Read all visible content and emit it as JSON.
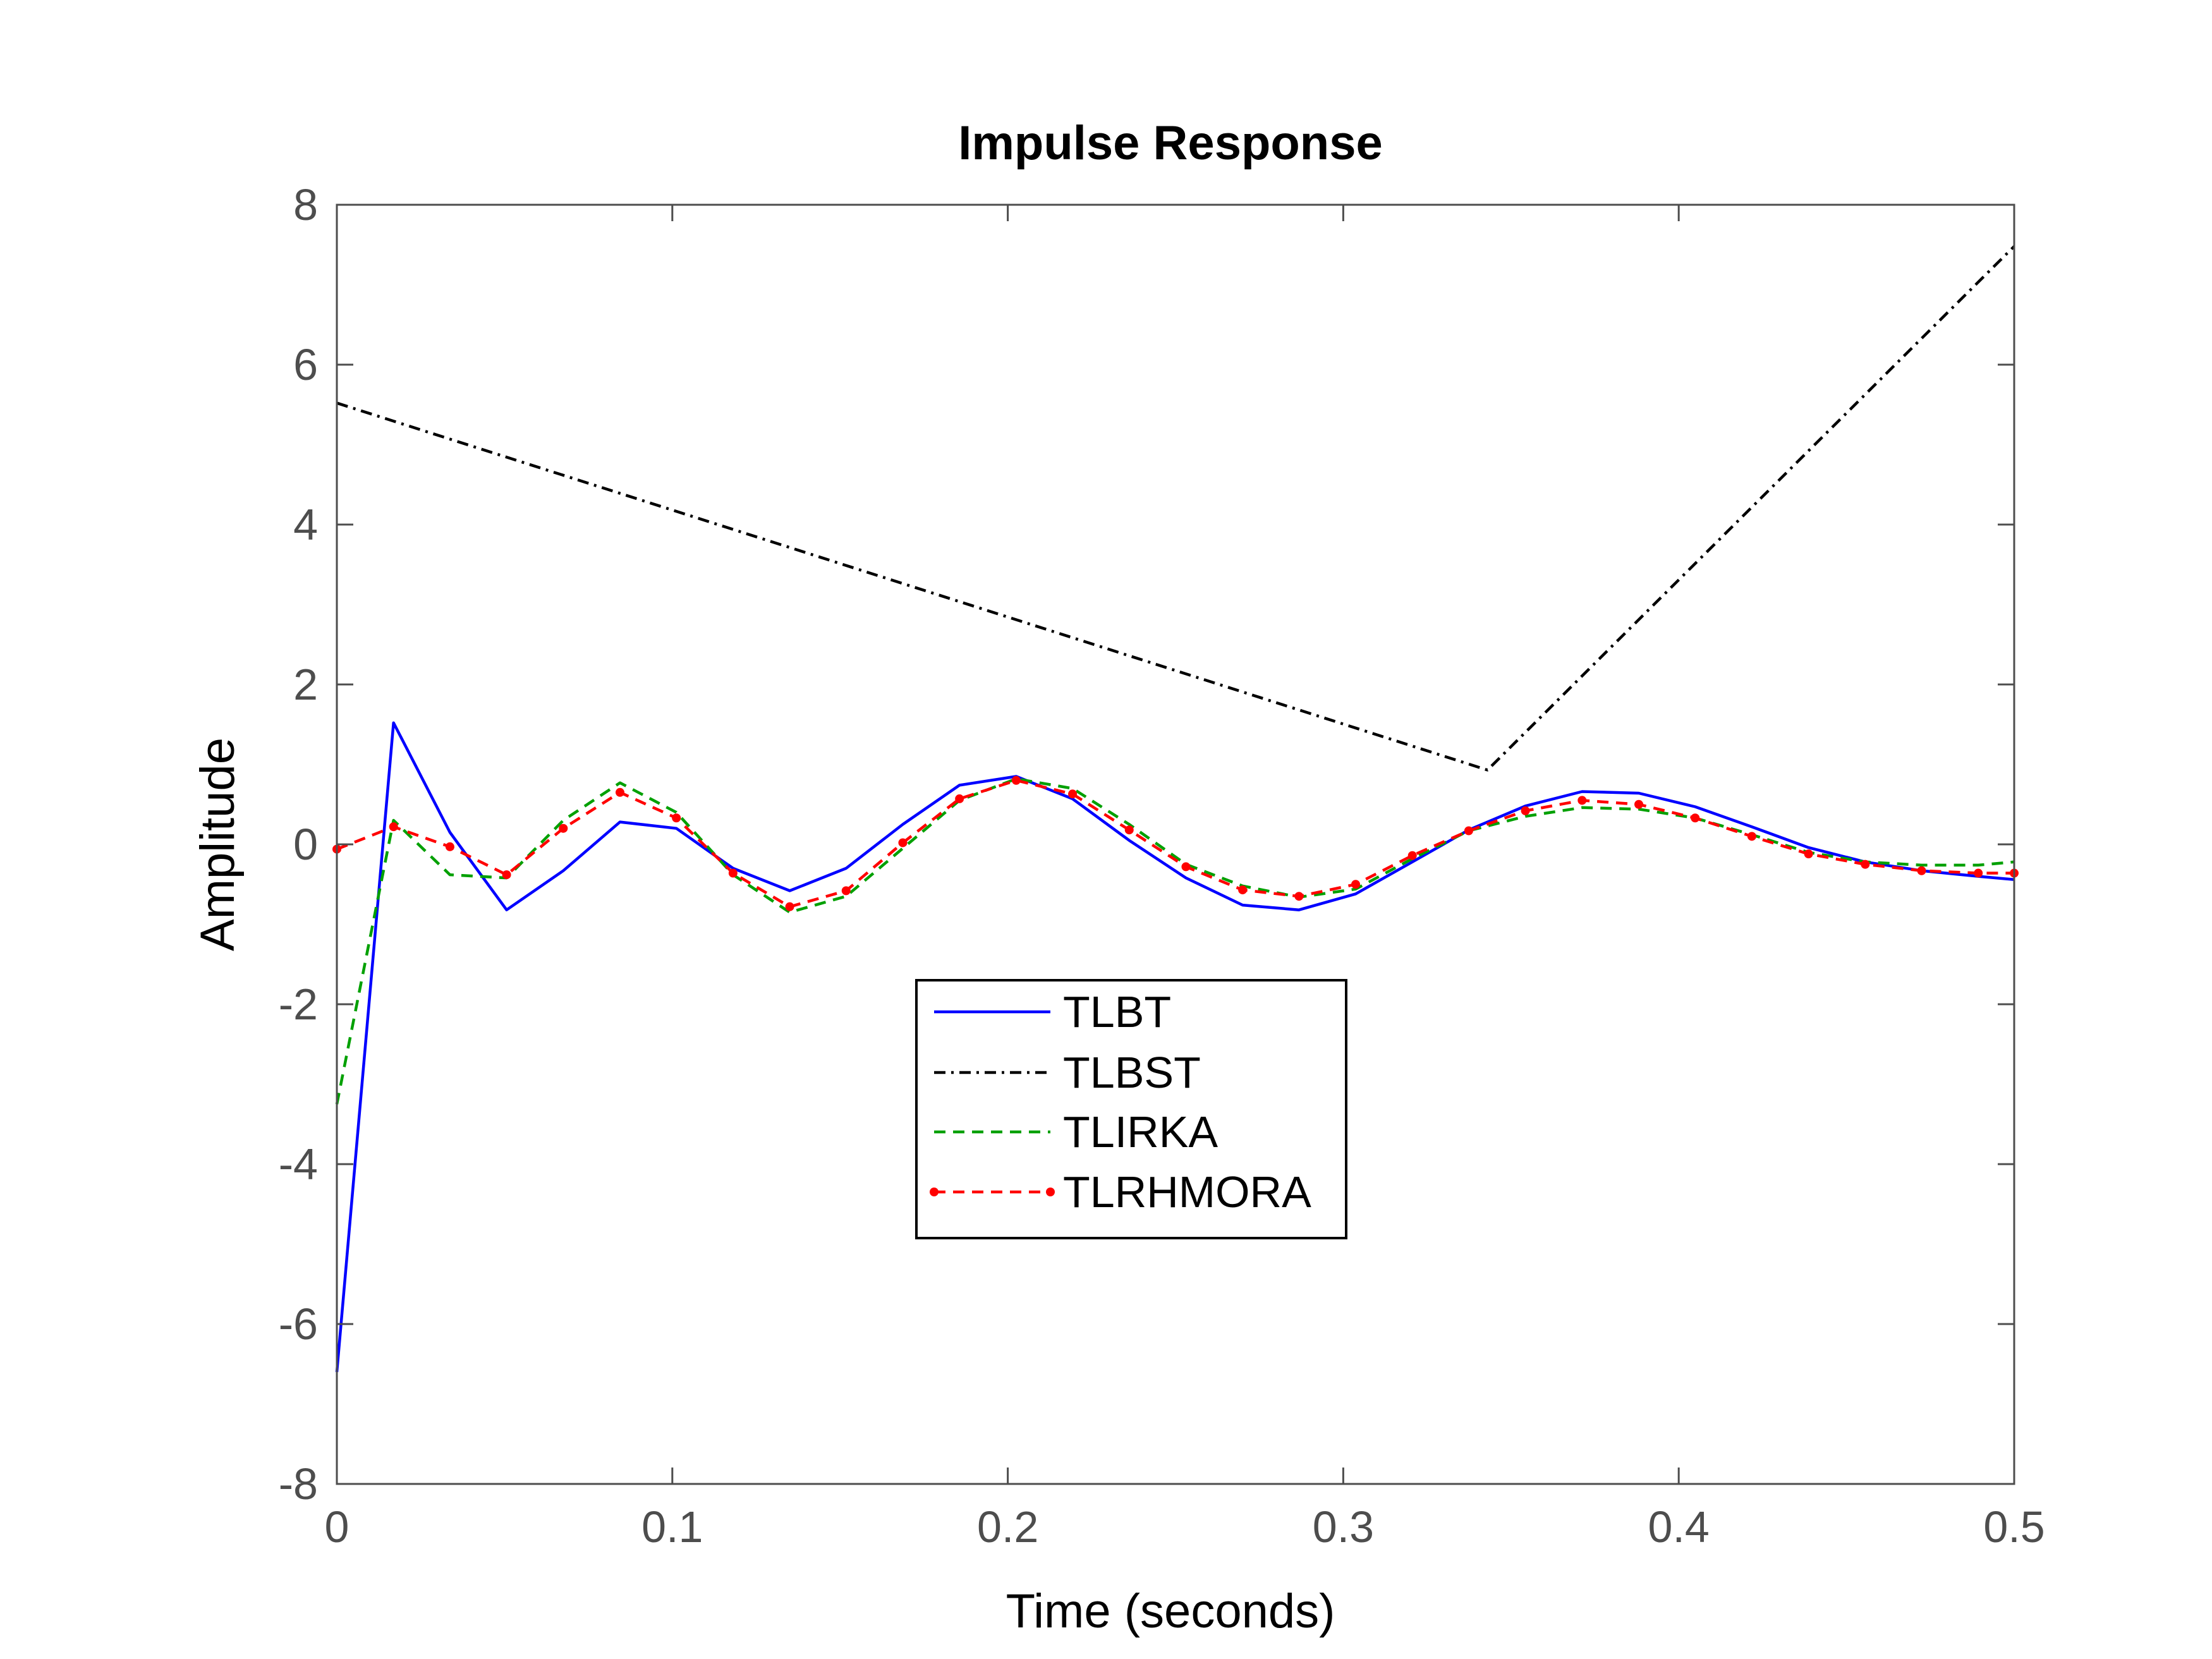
{
  "chart_data": {
    "type": "line",
    "title": "Impulse Response",
    "xlabel": "Time (seconds)",
    "ylabel": "Amplitude",
    "xlim": [
      0,
      0.5
    ],
    "ylim": [
      -8,
      8
    ],
    "grid": false,
    "legend_position": "center",
    "xticks": [
      0,
      0.1,
      0.2,
      0.3,
      0.4,
      0.5
    ],
    "xtick_labels": [
      "0",
      "0.1",
      "0.2",
      "0.3",
      "0.4",
      "0.5"
    ],
    "yticks": [
      -8,
      -6,
      -4,
      -2,
      0,
      2,
      4,
      6,
      8
    ],
    "ytick_labels": [
      "-8",
      "-6",
      "-4",
      "-2",
      "0",
      "2",
      "4",
      "6",
      "8"
    ],
    "series": [
      {
        "name": "TLBT",
        "color": "#0000ff",
        "style": "solid",
        "x": [
          0,
          0.0169,
          0.0337,
          0.0506,
          0.0675,
          0.0844,
          0.1012,
          0.1181,
          0.135,
          0.1518,
          0.1687,
          0.1856,
          0.2025,
          0.2193,
          0.2362,
          0.2531,
          0.27,
          0.2868,
          0.3037,
          0.3206,
          0.3374,
          0.3543,
          0.3712,
          0.3881,
          0.4049,
          0.4218,
          0.4387,
          0.4556,
          0.4724,
          0.4893,
          0.5
        ],
        "values": [
          -6.6,
          1.52,
          0.15,
          -0.82,
          -0.33,
          0.28,
          0.2,
          -0.3,
          -0.58,
          -0.3,
          0.25,
          0.74,
          0.85,
          0.57,
          0.05,
          -0.42,
          -0.76,
          -0.82,
          -0.62,
          -0.22,
          0.18,
          0.48,
          0.66,
          0.64,
          0.47,
          0.22,
          -0.04,
          -0.22,
          -0.33,
          -0.4,
          -0.44
        ]
      },
      {
        "name": "TLBST",
        "color": "#000000",
        "style": "dashdot",
        "x": [
          0,
          0.343,
          0.5
        ],
        "values": [
          5.52,
          0.93,
          7.48
        ]
      },
      {
        "name": "TLIRKA",
        "color": "#00a000",
        "style": "dashed",
        "x": [
          0,
          0.0169,
          0.0337,
          0.0506,
          0.0675,
          0.0844,
          0.1012,
          0.1181,
          0.135,
          0.1518,
          0.1687,
          0.1856,
          0.2025,
          0.2193,
          0.2362,
          0.2531,
          0.27,
          0.2868,
          0.3037,
          0.3206,
          0.3374,
          0.3543,
          0.3712,
          0.3881,
          0.4049,
          0.4218,
          0.4387,
          0.4556,
          0.4724,
          0.4893,
          0.5
        ],
        "values": [
          -3.25,
          0.3,
          -0.38,
          -0.42,
          0.3,
          0.77,
          0.4,
          -0.38,
          -0.85,
          -0.65,
          -0.05,
          0.55,
          0.82,
          0.7,
          0.25,
          -0.25,
          -0.52,
          -0.66,
          -0.56,
          -0.18,
          0.17,
          0.35,
          0.46,
          0.44,
          0.33,
          0.12,
          -0.1,
          -0.22,
          -0.26,
          -0.26,
          -0.22
        ]
      },
      {
        "name": "TLRHMORA",
        "color": "#ff0000",
        "style": "dashed-dot-markers",
        "x": [
          0,
          0.0169,
          0.0337,
          0.0506,
          0.0675,
          0.0844,
          0.1012,
          0.1181,
          0.135,
          0.1518,
          0.1687,
          0.1856,
          0.2025,
          0.2193,
          0.2362,
          0.2531,
          0.27,
          0.2868,
          0.3037,
          0.3206,
          0.3374,
          0.3543,
          0.3712,
          0.3881,
          0.4049,
          0.4218,
          0.4387,
          0.4556,
          0.4724,
          0.4893,
          0.5
        ],
        "values": [
          -0.06,
          0.22,
          -0.03,
          -0.38,
          0.2,
          0.65,
          0.33,
          -0.36,
          -0.78,
          -0.58,
          0.02,
          0.57,
          0.8,
          0.63,
          0.18,
          -0.28,
          -0.57,
          -0.65,
          -0.5,
          -0.14,
          0.17,
          0.42,
          0.55,
          0.5,
          0.33,
          0.1,
          -0.12,
          -0.25,
          -0.33,
          -0.36,
          -0.36
        ]
      }
    ]
  }
}
